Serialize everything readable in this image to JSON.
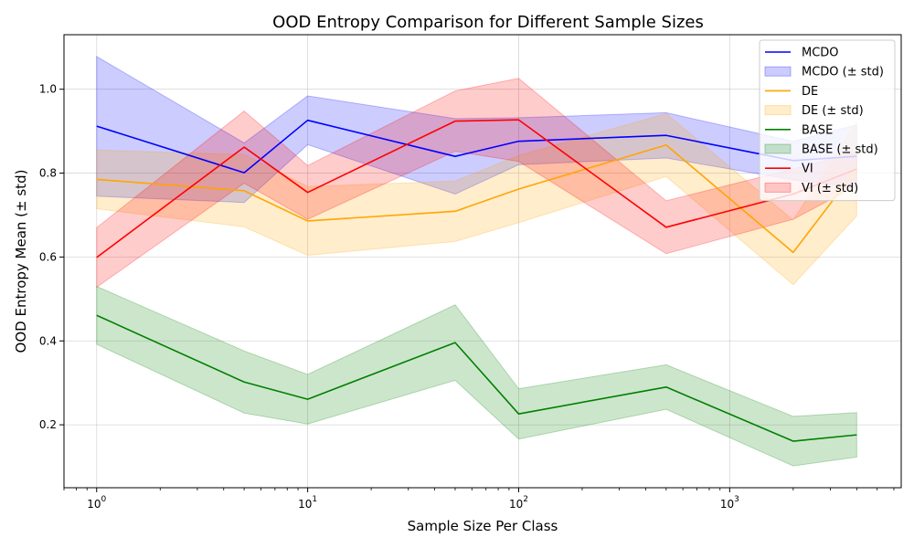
{
  "chart_data": {
    "type": "line",
    "title": "OOD Entropy Comparison for Different Sample Sizes",
    "xlabel": "Sample Size Per Class",
    "ylabel": "OOD Entropy Mean (± std)",
    "xscale": "log",
    "xlim": [
      0.7,
      6500
    ],
    "ylim": [
      0.05,
      1.13
    ],
    "grid": true,
    "legend_position": "top-right",
    "x": [
      1,
      5,
      10,
      50,
      100,
      500,
      2000,
      4000
    ],
    "xticks": [
      {
        "value": 1,
        "base": "10",
        "exp": "0"
      },
      {
        "value": 10,
        "base": "10",
        "exp": "1"
      },
      {
        "value": 100,
        "base": "10",
        "exp": "2"
      },
      {
        "value": 1000,
        "base": "10",
        "exp": "3"
      }
    ],
    "yticks": [
      {
        "value": 0.2,
        "label": "0.2"
      },
      {
        "value": 0.4,
        "label": "0.4"
      },
      {
        "value": 0.6,
        "label": "0.6"
      },
      {
        "value": 0.8,
        "label": "0.8"
      },
      {
        "value": 1.0,
        "label": "1.0"
      }
    ],
    "series": [
      {
        "name": "MCDO",
        "band_label": "MCDO (± std)",
        "color": "#0000ff",
        "values": [
          0.912,
          0.801,
          0.926,
          0.84,
          0.876,
          0.89,
          0.83,
          0.84
        ],
        "lower": [
          0.745,
          0.73,
          0.868,
          0.75,
          0.82,
          0.836,
          0.784,
          0.765
        ],
        "upper": [
          1.078,
          0.872,
          0.984,
          0.93,
          0.932,
          0.944,
          0.876,
          0.915
        ]
      },
      {
        "name": "DE",
        "band_label": "DE (± std)",
        "color": "#ffa500",
        "values": [
          0.785,
          0.758,
          0.686,
          0.709,
          0.762,
          0.867,
          0.611,
          0.81
        ],
        "lower": [
          0.715,
          0.672,
          0.604,
          0.637,
          0.682,
          0.792,
          0.534,
          0.698
        ],
        "upper": [
          0.855,
          0.844,
          0.768,
          0.781,
          0.842,
          0.942,
          0.688,
          0.922
        ]
      },
      {
        "name": "BASE",
        "band_label": "BASE (± std)",
        "color": "#008000",
        "values": [
          0.461,
          0.302,
          0.261,
          0.396,
          0.226,
          0.29,
          0.161,
          0.176
        ],
        "lower": [
          0.392,
          0.228,
          0.202,
          0.306,
          0.166,
          0.237,
          0.102,
          0.123
        ],
        "upper": [
          0.53,
          0.376,
          0.32,
          0.486,
          0.286,
          0.343,
          0.22,
          0.229
        ]
      },
      {
        "name": "VI",
        "band_label": "VI (± std)",
        "color": "#ff0000",
        "values": [
          0.599,
          0.862,
          0.754,
          0.924,
          0.927,
          0.671,
          0.75,
          0.81
        ],
        "lower": [
          0.528,
          0.776,
          0.69,
          0.852,
          0.828,
          0.608,
          0.69,
          0.77
        ],
        "upper": [
          0.67,
          0.948,
          0.818,
          0.996,
          1.026,
          0.734,
          0.81,
          0.85
        ]
      }
    ]
  }
}
